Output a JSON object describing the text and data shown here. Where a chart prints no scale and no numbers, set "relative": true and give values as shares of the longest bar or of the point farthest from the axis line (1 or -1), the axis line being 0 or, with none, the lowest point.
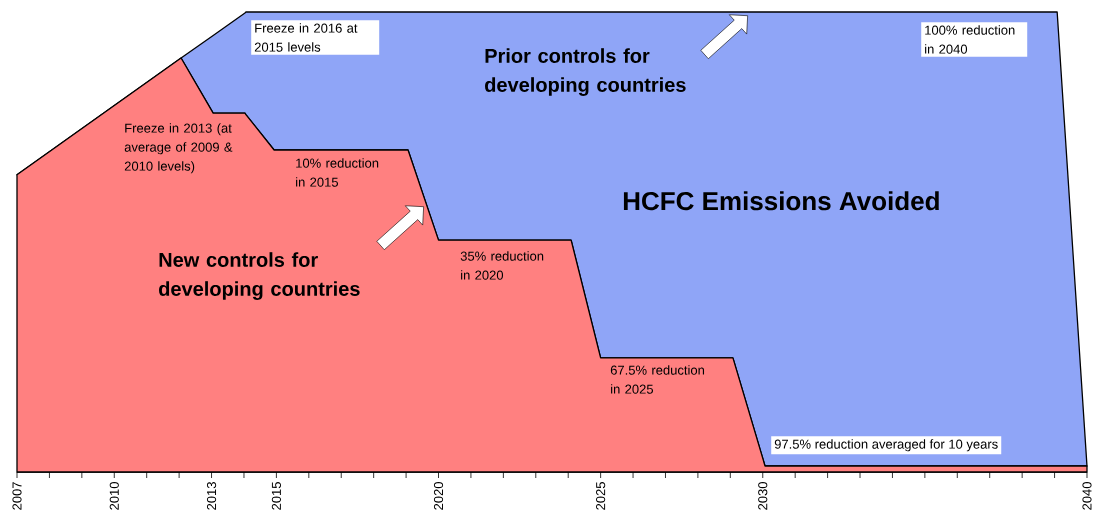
{
  "chart_data": {
    "type": "area",
    "relative": true,
    "stacked": true,
    "xlim": [
      2007,
      2040
    ],
    "xticks": [
      2007,
      {
        "value": 2008,
        "label": null
      },
      {
        "value": 2009,
        "label": null
      },
      2010,
      {
        "value": 2011,
        "label": null
      },
      {
        "value": 2012,
        "label": null
      },
      2013,
      {
        "value": 2014,
        "label": null
      },
      2015,
      {
        "value": 2016,
        "label": null
      },
      {
        "value": 2017,
        "label": null
      },
      {
        "value": 2018,
        "label": null
      },
      {
        "value": 2019,
        "label": null
      },
      2020,
      {
        "value": 2021,
        "label": null
      },
      {
        "value": 2022,
        "label": null
      },
      {
        "value": 2023,
        "label": null
      },
      {
        "value": 2024,
        "label": null
      },
      2025,
      {
        "value": 2026,
        "label": null
      },
      {
        "value": 2027,
        "label": null
      },
      {
        "value": 2028,
        "label": null
      },
      {
        "value": 2029,
        "label": null
      },
      2030,
      {
        "value": 2031,
        "label": null
      },
      {
        "value": 2032,
        "label": null
      },
      {
        "value": 2033,
        "label": null
      },
      {
        "value": 2034,
        "label": null
      },
      {
        "value": 2035,
        "label": null
      },
      {
        "value": 2036,
        "label": null
      },
      {
        "value": 2037,
        "label": null
      },
      {
        "value": 2038,
        "label": null
      },
      {
        "value": 2039,
        "label": null
      },
      2040
    ],
    "x": [
      2007,
      2012.06,
      2013.05,
      2014.03,
      2014.06,
      2014.93,
      2019.06,
      2020,
      2024.09,
      2025,
      2029.08,
      2030.07,
      2039.08,
      2040
    ],
    "series": [
      {
        "name": "New controls for developing countries",
        "color": "#ff8080",
        "values": [
          0.646,
          0.9,
          0.78,
          0.78,
          0.777,
          0.7,
          0.7,
          0.504,
          0.504,
          0.248,
          0.248,
          0.013,
          0.013,
          0.013
        ]
      },
      {
        "name": "Prior controls for developing countries",
        "color": "#8fa5f7",
        "values": [
          0,
          0,
          0.169,
          0.218,
          0.223,
          0.3,
          0.3,
          0.496,
          0.496,
          0.752,
          0.752,
          0.987,
          0.987,
          0
        ]
      }
    ],
    "annotations": [
      "Freeze in 2016 at 2015 levels",
      "100% reduction in 2040",
      "Freeze in 2013 (at average of 2009 & 2010 levels)",
      "10% reduction in 2015",
      "35% reduction in 2020",
      "67.5% reduction in 2025",
      "97.5% reduction averaged for 10 years",
      "HCFC Emissions Avoided"
    ]
  }
}
